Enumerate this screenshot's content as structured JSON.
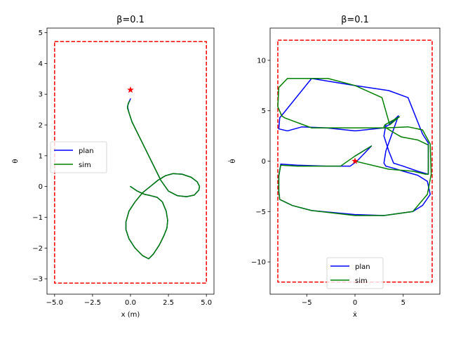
{
  "chart_data": [
    {
      "type": "line",
      "title": "β=0.1",
      "xlabel": "x (m)",
      "ylabel": "θ",
      "xlim": [
        -5.5,
        5.5
      ],
      "ylim": [
        -3.5,
        5.15
      ],
      "xticks": [
        -5.0,
        -2.5,
        0.0,
        2.5,
        5.0
      ],
      "xtick_labels": [
        "−5.0",
        "−2.5",
        "0.0",
        "2.5",
        "5.0"
      ],
      "yticks": [
        -3,
        -2,
        -1,
        0,
        1,
        2,
        3,
        4,
        5
      ],
      "ytick_labels": [
        "−3",
        "−2",
        "−1",
        "0",
        "1",
        "2",
        "3",
        "4",
        "5"
      ],
      "legend": {
        "position": "center-left",
        "entries": [
          "plan",
          "sim"
        ]
      },
      "bounds_box": {
        "x": [
          -5.0,
          5.0
        ],
        "y": [
          -3.14,
          4.71
        ],
        "color": "#ff0000",
        "style": "dashed"
      },
      "goal_marker": {
        "x": 0.0,
        "y": 3.14,
        "color": "#ff0000",
        "shape": "star"
      },
      "series": [
        {
          "name": "plan",
          "color": "#0000ff",
          "x": [
            0.0,
            0.45,
            0.9,
            1.35,
            1.75,
            2.1,
            2.35,
            2.45,
            2.4,
            2.2,
            1.9,
            1.5,
            1.2,
            0.8,
            0.3,
            -0.1,
            -0.3,
            -0.3,
            -0.1,
            0.3,
            0.8,
            1.3,
            1.8,
            2.3,
            2.8,
            3.4,
            4.0,
            4.4,
            4.55,
            4.5,
            4.2,
            3.7,
            3.1,
            2.5,
            2.0,
            1.6,
            1.2,
            0.8,
            0.4,
            0.1,
            -0.1,
            -0.2,
            -0.1,
            0.0
          ],
          "y": [
            0.0,
            -0.15,
            -0.25,
            -0.3,
            -0.35,
            -0.5,
            -0.8,
            -1.1,
            -1.35,
            -1.6,
            -1.9,
            -2.2,
            -2.35,
            -2.25,
            -2.0,
            -1.7,
            -1.4,
            -1.15,
            -0.8,
            -0.5,
            -0.2,
            0.0,
            0.2,
            0.35,
            0.42,
            0.4,
            0.3,
            0.15,
            0.0,
            -0.12,
            -0.28,
            -0.33,
            -0.3,
            -0.15,
            0.2,
            0.6,
            1.0,
            1.4,
            1.8,
            2.1,
            2.4,
            2.6,
            2.75,
            2.85
          ]
        },
        {
          "name": "sim",
          "color": "#008000",
          "x": [
            0.0,
            0.45,
            0.9,
            1.35,
            1.75,
            2.1,
            2.35,
            2.45,
            2.4,
            2.2,
            1.9,
            1.5,
            1.2,
            0.8,
            0.3,
            -0.1,
            -0.3,
            -0.3,
            -0.1,
            0.3,
            0.8,
            1.3,
            1.8,
            2.3,
            2.8,
            3.4,
            4.0,
            4.4,
            4.55,
            4.5,
            4.2,
            3.7,
            3.1,
            2.5,
            2.0,
            1.6,
            1.2,
            0.8,
            0.4,
            0.1,
            -0.1,
            -0.2,
            -0.15,
            -0.05
          ],
          "y": [
            0.0,
            -0.15,
            -0.25,
            -0.3,
            -0.35,
            -0.5,
            -0.8,
            -1.1,
            -1.35,
            -1.6,
            -1.9,
            -2.2,
            -2.35,
            -2.25,
            -2.0,
            -1.7,
            -1.4,
            -1.15,
            -0.8,
            -0.5,
            -0.2,
            0.0,
            0.2,
            0.35,
            0.42,
            0.4,
            0.3,
            0.15,
            0.0,
            -0.12,
            -0.28,
            -0.33,
            -0.3,
            -0.15,
            0.2,
            0.6,
            1.0,
            1.4,
            1.8,
            2.1,
            2.4,
            2.55,
            2.7,
            2.78
          ]
        }
      ]
    },
    {
      "type": "line",
      "title": "β=0.1",
      "xlabel": "ẋ",
      "ylabel": "θ̇",
      "xlim": [
        -8.8,
        8.8
      ],
      "ylim": [
        -13.2,
        13.2
      ],
      "xticks": [
        -5,
        0,
        5
      ],
      "xtick_labels": [
        "−5",
        "0",
        "5"
      ],
      "yticks": [
        -10,
        -5,
        0,
        5,
        10
      ],
      "ytick_labels": [
        "−10",
        "−5",
        "0",
        "5",
        "10"
      ],
      "legend": {
        "position": "lower-center",
        "entries": [
          "plan",
          "sim"
        ]
      },
      "bounds_box": {
        "x": [
          -8.0,
          8.0
        ],
        "y": [
          -12.0,
          12.0
        ],
        "color": "#ff0000",
        "style": "dashed"
      },
      "goal_marker": {
        "x": 0.0,
        "y": 0.0,
        "color": "#ff0000",
        "shape": "star"
      },
      "series": [
        {
          "name": "plan",
          "color": "#0000ff",
          "x": [
            0.0,
            1.7,
            0.2,
            -0.5,
            -3.0,
            -6.0,
            -7.7,
            -7.9,
            -7.9,
            -7.8,
            -6.5,
            -4.5,
            0.0,
            3.0,
            6.0,
            7.0,
            7.8,
            7.5,
            6.5,
            5.0,
            4.0,
            3.2,
            3.0,
            3.2,
            4.5,
            3.5,
            3.0,
            0.0,
            -3.0,
            -5.5,
            -7.0,
            -7.9,
            -7.8,
            -7.2,
            -4.5,
            0.0,
            3.5,
            5.5,
            7.0,
            7.6,
            7.6,
            6.5,
            5.0,
            4.0,
            3.5,
            3.0,
            3.2
          ],
          "y": [
            0.5,
            1.5,
            0.0,
            -0.5,
            -0.5,
            -0.4,
            -0.3,
            -1.5,
            -3.0,
            -3.8,
            -4.4,
            -4.9,
            -5.3,
            -5.4,
            -5.0,
            -4.4,
            -3.3,
            -2.0,
            -1.4,
            -1.0,
            -0.7,
            -0.5,
            -0.2,
            1.0,
            4.5,
            3.6,
            3.3,
            3.0,
            3.3,
            3.4,
            3.0,
            3.2,
            4.3,
            5.0,
            8.2,
            7.5,
            7.0,
            6.3,
            2.7,
            1.8,
            -1.3,
            -1.0,
            -0.5,
            -0.2,
            1.0,
            2.5,
            3.6
          ]
        },
        {
          "name": "sim",
          "color": "#008000",
          "x": [
            0.0,
            3.5,
            6.0,
            7.3,
            7.6,
            7.6,
            6.5,
            4.8,
            3.9,
            3.4,
            3.0,
            3.1,
            4.6,
            3.6,
            2.8,
            0.0,
            -2.8,
            -5.5,
            -7.0,
            -7.9,
            -8.0,
            -7.6,
            -7.3,
            -4.5,
            -0.2,
            3.2,
            5.5,
            7.0,
            7.8,
            7.9,
            7.5,
            6.0,
            3.0,
            0.0,
            -4.5,
            -6.5,
            -7.8,
            -7.9,
            -7.9,
            -7.7,
            -6.0,
            -3.0,
            -1.5,
            0.0,
            1.7,
            0.0
          ],
          "y": [
            0.0,
            -0.8,
            -1.0,
            -1.3,
            -1.3,
            1.6,
            2.1,
            2.4,
            2.9,
            3.2,
            3.4,
            3.6,
            4.4,
            3.6,
            6.3,
            7.5,
            8.2,
            8.2,
            8.2,
            7.3,
            5.4,
            4.5,
            4.3,
            3.3,
            3.3,
            3.3,
            3.4,
            3.1,
            1.7,
            -1.3,
            -3.3,
            -5.0,
            -5.4,
            -5.4,
            -4.9,
            -4.4,
            -3.8,
            -3.0,
            -1.5,
            -0.4,
            -0.5,
            -0.5,
            -0.5,
            0.5,
            1.5,
            0.5
          ]
        }
      ]
    }
  ]
}
